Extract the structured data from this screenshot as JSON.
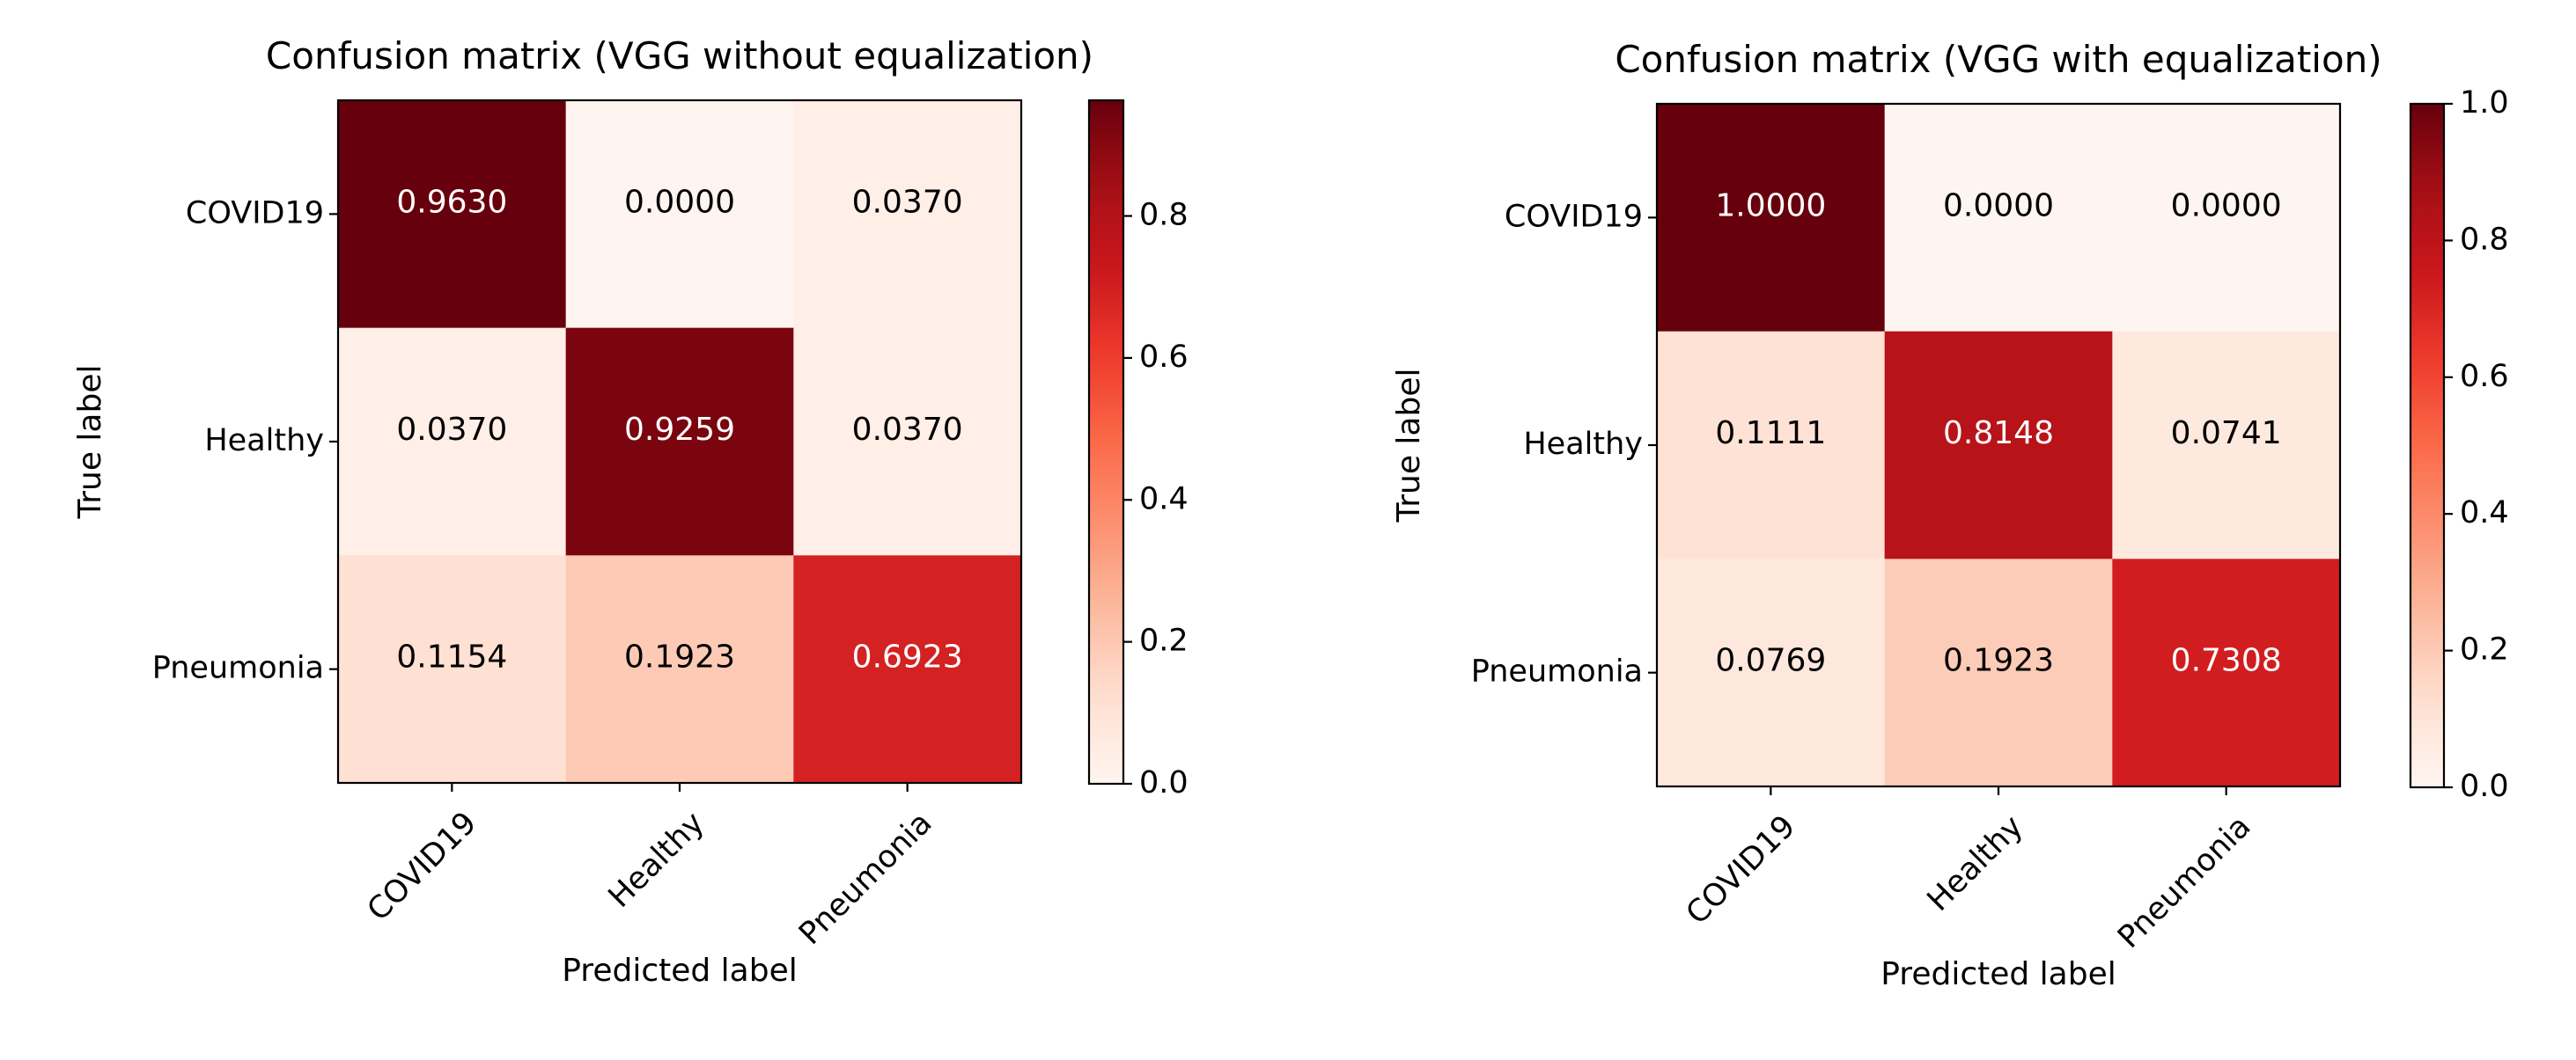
{
  "chart_data": [
    {
      "type": "heatmap",
      "title": "Confusion matrix (VGG without equalization)",
      "xlabel": "Predicted label",
      "ylabel": "True label",
      "x_categories": [
        "COVID19",
        "Healthy",
        "Pneumonia"
      ],
      "y_categories": [
        "COVID19",
        "Healthy",
        "Pneumonia"
      ],
      "values": [
        [
          0.963,
          0.0,
          0.037
        ],
        [
          0.037,
          0.9259,
          0.037
        ],
        [
          0.1154,
          0.1923,
          0.6923
        ]
      ],
      "cell_labels": [
        [
          "0.9630",
          "0.0000",
          "0.0370"
        ],
        [
          "0.0370",
          "0.9259",
          "0.0370"
        ],
        [
          "0.1154",
          "0.1923",
          "0.6923"
        ]
      ],
      "colormap": "Reds",
      "colorbar": {
        "range": [
          0.0,
          0.963
        ],
        "ticks": [
          0.0,
          0.2,
          0.4,
          0.6,
          0.8
        ],
        "tick_labels": [
          "0.0",
          "0.2",
          "0.4",
          "0.6",
          "0.8"
        ]
      }
    },
    {
      "type": "heatmap",
      "title": "Confusion matrix (VGG with equalization)",
      "xlabel": "Predicted label",
      "ylabel": "True label",
      "x_categories": [
        "COVID19",
        "Healthy",
        "Pneumonia"
      ],
      "y_categories": [
        "COVID19",
        "Healthy",
        "Pneumonia"
      ],
      "values": [
        [
          1.0,
          0.0,
          0.0
        ],
        [
          0.1111,
          0.8148,
          0.0741
        ],
        [
          0.0769,
          0.1923,
          0.7308
        ]
      ],
      "cell_labels": [
        [
          "1.0000",
          "0.0000",
          "0.0000"
        ],
        [
          "0.1111",
          "0.8148",
          "0.0741"
        ],
        [
          "0.0769",
          "0.1923",
          "0.7308"
        ]
      ],
      "colormap": "Reds",
      "colorbar": {
        "range": [
          0.0,
          1.0
        ],
        "ticks": [
          0.0,
          0.2,
          0.4,
          0.6,
          0.8,
          1.0
        ],
        "tick_labels": [
          "0.0",
          "0.2",
          "0.4",
          "0.6",
          "0.8",
          "1.0"
        ]
      }
    }
  ]
}
